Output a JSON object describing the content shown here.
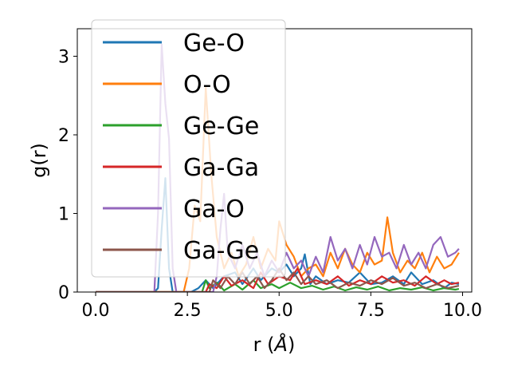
{
  "chart_data": {
    "type": "line",
    "title": "",
    "xlabel_base": "r (",
    "xlabel_unit": "Å",
    "xlabel_end": ")",
    "ylabel": "g(r)",
    "xlim": [
      -0.5,
      10.25
    ],
    "ylim": [
      0,
      3.35
    ],
    "xticks": [
      0.0,
      2.5,
      5.0,
      7.5,
      10.0
    ],
    "xtick_labels": [
      "0.0",
      "2.5",
      "5.0",
      "7.5",
      "10.0"
    ],
    "yticks": [
      0,
      1,
      2,
      3
    ],
    "ytick_labels": [
      "0",
      "1",
      "2",
      "3"
    ],
    "grid": false,
    "legend_position": "top-left",
    "series": [
      {
        "name": "Ge-O",
        "color": "#1f77b4",
        "points": [
          [
            0,
            0
          ],
          [
            1.6,
            0
          ],
          [
            1.7,
            0.05
          ],
          [
            1.8,
            0.8
          ],
          [
            1.9,
            1.45
          ],
          [
            2.0,
            0.3
          ],
          [
            2.1,
            0
          ],
          [
            2.6,
            0
          ],
          [
            2.8,
            0.05
          ],
          [
            3.0,
            0.15
          ],
          [
            3.2,
            0.05
          ],
          [
            3.5,
            0.2
          ],
          [
            3.8,
            0.25
          ],
          [
            4.0,
            0.1
          ],
          [
            4.3,
            0.3
          ],
          [
            4.5,
            0.15
          ],
          [
            4.8,
            0.3
          ],
          [
            5.0,
            0.25
          ],
          [
            5.2,
            0.35
          ],
          [
            5.4,
            0.2
          ],
          [
            5.6,
            0.3
          ],
          [
            5.7,
            0.48
          ],
          [
            5.85,
            0.1
          ],
          [
            6.0,
            0.2
          ],
          [
            6.3,
            0.1
          ],
          [
            6.6,
            0.15
          ],
          [
            6.9,
            0.12
          ],
          [
            7.2,
            0.25
          ],
          [
            7.5,
            0.1
          ],
          [
            7.8,
            0.12
          ],
          [
            8.1,
            0.2
          ],
          [
            8.4,
            0.1
          ],
          [
            8.6,
            0.25
          ],
          [
            8.9,
            0.1
          ],
          [
            9.2,
            0.15
          ],
          [
            9.5,
            0.05
          ],
          [
            9.7,
            0.12
          ],
          [
            9.9,
            0.1
          ]
        ]
      },
      {
        "name": "O-O",
        "color": "#ff7f0e",
        "points": [
          [
            0,
            0
          ],
          [
            2.4,
            0
          ],
          [
            2.55,
            0.3
          ],
          [
            2.7,
            1.1
          ],
          [
            2.85,
            0.9
          ],
          [
            3.0,
            2.6
          ],
          [
            3.15,
            1.5
          ],
          [
            3.3,
            0.7
          ],
          [
            3.5,
            0.3
          ],
          [
            3.7,
            0.5
          ],
          [
            3.9,
            0.2
          ],
          [
            4.1,
            0.35
          ],
          [
            4.3,
            0.7
          ],
          [
            4.5,
            0.3
          ],
          [
            4.7,
            0.55
          ],
          [
            4.9,
            0.4
          ],
          [
            5.0,
            0.9
          ],
          [
            5.2,
            0.6
          ],
          [
            5.4,
            0.45
          ],
          [
            5.6,
            0.2
          ],
          [
            5.8,
            0.3
          ],
          [
            6.0,
            0.35
          ],
          [
            6.2,
            0.2
          ],
          [
            6.4,
            0.5
          ],
          [
            6.6,
            0.3
          ],
          [
            6.8,
            0.55
          ],
          [
            7.0,
            0.35
          ],
          [
            7.2,
            0.25
          ],
          [
            7.4,
            0.5
          ],
          [
            7.6,
            0.35
          ],
          [
            7.8,
            0.4
          ],
          [
            7.95,
            0.95
          ],
          [
            8.1,
            0.5
          ],
          [
            8.3,
            0.25
          ],
          [
            8.5,
            0.4
          ],
          [
            8.7,
            0.3
          ],
          [
            8.9,
            0.5
          ],
          [
            9.1,
            0.25
          ],
          [
            9.3,
            0.45
          ],
          [
            9.5,
            0.3
          ],
          [
            9.7,
            0.35
          ],
          [
            9.9,
            0.5
          ]
        ]
      },
      {
        "name": "Ge-Ge",
        "color": "#2ca02c",
        "points": [
          [
            0,
            0
          ],
          [
            2.9,
            0
          ],
          [
            3.0,
            0.15
          ],
          [
            3.1,
            0.05
          ],
          [
            3.3,
            0.12
          ],
          [
            3.5,
            0.02
          ],
          [
            3.8,
            0.1
          ],
          [
            4.0,
            0.03
          ],
          [
            4.3,
            0.15
          ],
          [
            4.5,
            0.05
          ],
          [
            4.8,
            0.1
          ],
          [
            5.0,
            0.05
          ],
          [
            5.3,
            0.12
          ],
          [
            5.6,
            0.05
          ],
          [
            5.9,
            0.08
          ],
          [
            6.2,
            0.03
          ],
          [
            6.5,
            0.07
          ],
          [
            6.8,
            0.02
          ],
          [
            7.1,
            0.06
          ],
          [
            7.4,
            0.03
          ],
          [
            7.7,
            0.07
          ],
          [
            8.0,
            0.02
          ],
          [
            8.3,
            0.05
          ],
          [
            8.6,
            0.03
          ],
          [
            8.9,
            0.06
          ],
          [
            9.2,
            0.02
          ],
          [
            9.5,
            0.05
          ],
          [
            9.8,
            0.03
          ],
          [
            9.9,
            0.04
          ]
        ]
      },
      {
        "name": "Ga-Ga",
        "color": "#d62728",
        "points": [
          [
            0,
            0
          ],
          [
            3.0,
            0
          ],
          [
            3.1,
            0.1
          ],
          [
            3.3,
            0.05
          ],
          [
            3.5,
            0.2
          ],
          [
            3.7,
            0.08
          ],
          [
            4.0,
            0.15
          ],
          [
            4.3,
            0.05
          ],
          [
            4.5,
            0.25
          ],
          [
            4.7,
            0.1
          ],
          [
            5.0,
            0.2
          ],
          [
            5.3,
            0.15
          ],
          [
            5.5,
            0.3
          ],
          [
            5.7,
            0.1
          ],
          [
            6.0,
            0.15
          ],
          [
            6.3,
            0.1
          ],
          [
            6.6,
            0.2
          ],
          [
            6.9,
            0.08
          ],
          [
            7.2,
            0.15
          ],
          [
            7.5,
            0.1
          ],
          [
            7.8,
            0.2
          ],
          [
            8.1,
            0.12
          ],
          [
            8.4,
            0.15
          ],
          [
            8.7,
            0.08
          ],
          [
            9.0,
            0.2
          ],
          [
            9.3,
            0.1
          ],
          [
            9.5,
            0.15
          ],
          [
            9.7,
            0.1
          ],
          [
            9.9,
            0.12
          ]
        ]
      },
      {
        "name": "Ga-O",
        "color": "#9467bd",
        "points": [
          [
            0,
            0
          ],
          [
            1.6,
            0
          ],
          [
            1.7,
            1.0
          ],
          [
            1.8,
            3.15
          ],
          [
            1.9,
            2.4
          ],
          [
            2.0,
            1.95
          ],
          [
            2.1,
            0.3
          ],
          [
            2.2,
            0
          ],
          [
            3.2,
            0
          ],
          [
            3.3,
            0.2
          ],
          [
            3.4,
            0.8
          ],
          [
            3.5,
            1.25
          ],
          [
            3.6,
            0.5
          ],
          [
            3.8,
            0.3
          ],
          [
            4.0,
            0.6
          ],
          [
            4.2,
            0.3
          ],
          [
            4.4,
            0.5
          ],
          [
            4.6,
            0.2
          ],
          [
            4.8,
            0.4
          ],
          [
            5.0,
            0.25
          ],
          [
            5.2,
            0.5
          ],
          [
            5.4,
            0.3
          ],
          [
            5.6,
            0.4
          ],
          [
            5.8,
            0.2
          ],
          [
            6.0,
            0.45
          ],
          [
            6.2,
            0.25
          ],
          [
            6.4,
            0.7
          ],
          [
            6.6,
            0.4
          ],
          [
            6.8,
            0.55
          ],
          [
            7.0,
            0.3
          ],
          [
            7.2,
            0.6
          ],
          [
            7.4,
            0.35
          ],
          [
            7.6,
            0.7
          ],
          [
            7.8,
            0.45
          ],
          [
            8.0,
            0.5
          ],
          [
            8.2,
            0.3
          ],
          [
            8.4,
            0.6
          ],
          [
            8.6,
            0.35
          ],
          [
            8.8,
            0.5
          ],
          [
            9.0,
            0.3
          ],
          [
            9.2,
            0.6
          ],
          [
            9.4,
            0.7
          ],
          [
            9.6,
            0.45
          ],
          [
            9.8,
            0.5
          ],
          [
            9.9,
            0.55
          ]
        ]
      },
      {
        "name": "Ga-Ge",
        "color": "#8c564b",
        "points": [
          [
            0,
            0
          ],
          [
            3.1,
            0
          ],
          [
            3.2,
            0.15
          ],
          [
            3.4,
            0.05
          ],
          [
            3.6,
            0.2
          ],
          [
            3.8,
            0.1
          ],
          [
            4.0,
            0.25
          ],
          [
            4.2,
            0.1
          ],
          [
            4.4,
            0.2
          ],
          [
            4.6,
            0.05
          ],
          [
            4.8,
            0.15
          ],
          [
            5.0,
            0.3
          ],
          [
            5.2,
            0.15
          ],
          [
            5.4,
            0.25
          ],
          [
            5.6,
            0.1
          ],
          [
            5.8,
            0.2
          ],
          [
            6.0,
            0.1
          ],
          [
            6.3,
            0.15
          ],
          [
            6.6,
            0.05
          ],
          [
            6.9,
            0.12
          ],
          [
            7.2,
            0.08
          ],
          [
            7.5,
            0.15
          ],
          [
            7.8,
            0.1
          ],
          [
            8.1,
            0.18
          ],
          [
            8.4,
            0.08
          ],
          [
            8.7,
            0.12
          ],
          [
            9.0,
            0.05
          ],
          [
            9.3,
            0.1
          ],
          [
            9.6,
            0.05
          ],
          [
            9.9,
            0.08
          ]
        ]
      }
    ]
  }
}
